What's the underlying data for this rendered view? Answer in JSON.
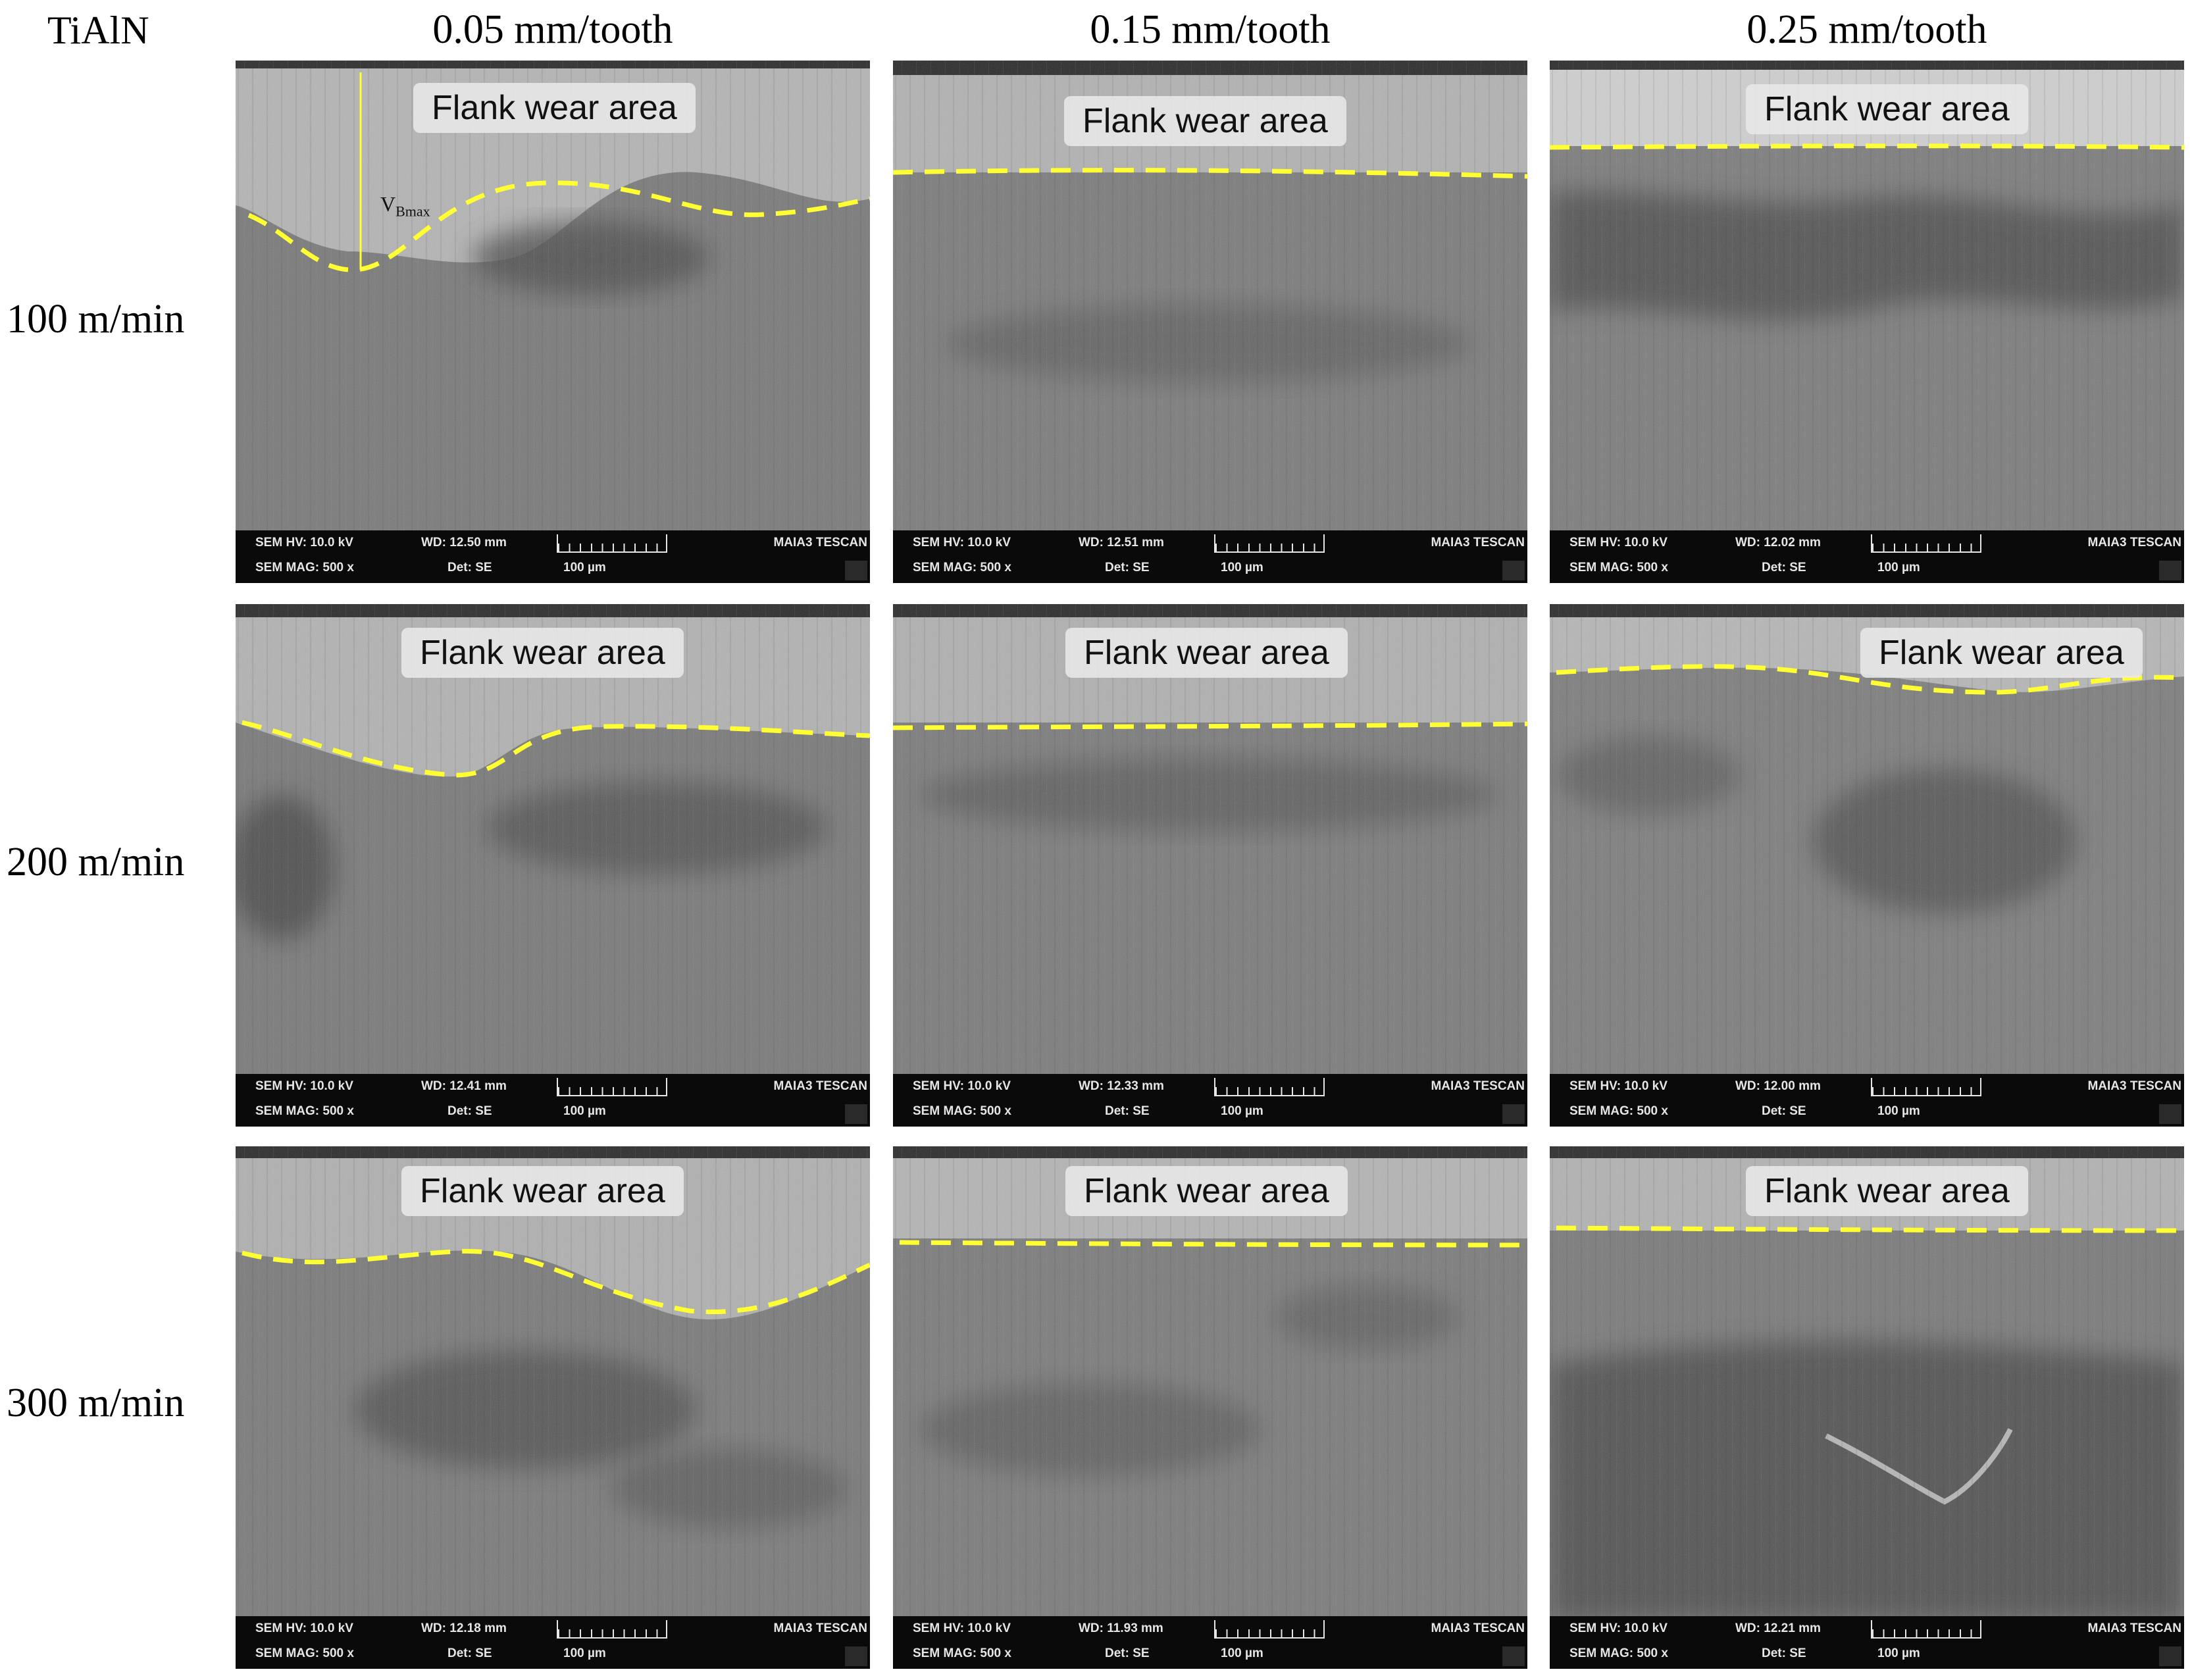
{
  "figure": {
    "corner_label": "TiAlN",
    "column_headers": [
      "0.05 mm/tooth",
      "0.15 mm/tooth",
      "0.25 mm/tooth"
    ],
    "row_labels": [
      "100 m/min",
      "200 m/min",
      "300 m/min"
    ],
    "flank_wear_label": "Flank wear area",
    "vb_label_main": "V",
    "vb_label_sub": "Bmax",
    "boundary_color": "#ffff33"
  },
  "panels": [
    {
      "hv": "SEM HV: 10.0 kV",
      "wd": "WD: 12.50 mm",
      "mag": "SEM MAG: 500 x",
      "det": "Det: SE",
      "scale": "100 µm",
      "brand": "MAIA3 TESCAN"
    },
    {
      "hv": "SEM HV: 10.0 kV",
      "wd": "WD: 12.51 mm",
      "mag": "SEM MAG: 500 x",
      "det": "Det: SE",
      "scale": "100 µm",
      "brand": "MAIA3 TESCAN"
    },
    {
      "hv": "SEM HV: 10.0 kV",
      "wd": "WD: 12.02 mm",
      "mag": "SEM MAG: 500 x",
      "det": "Det: SE",
      "scale": "100 µm",
      "brand": "MAIA3 TESCAN"
    },
    {
      "hv": "SEM HV: 10.0 kV",
      "wd": "WD: 12.41 mm",
      "mag": "SEM MAG: 500 x",
      "det": "Det: SE",
      "scale": "100 µm",
      "brand": "MAIA3 TESCAN"
    },
    {
      "hv": "SEM HV: 10.0 kV",
      "wd": "WD: 12.33 mm",
      "mag": "SEM MAG: 500 x",
      "det": "Det: SE",
      "scale": "100 µm",
      "brand": "MAIA3 TESCAN"
    },
    {
      "hv": "SEM HV: 10.0 kV",
      "wd": "WD: 12.00 mm",
      "mag": "SEM MAG: 500 x",
      "det": "Det: SE",
      "scale": "100 µm",
      "brand": "MAIA3 TESCAN"
    },
    {
      "hv": "SEM HV: 10.0 kV",
      "wd": "WD: 12.18 mm",
      "mag": "SEM MAG: 500 x",
      "det": "Det: SE",
      "scale": "100 µm",
      "brand": "MAIA3 TESCAN"
    },
    {
      "hv": "SEM HV: 10.0 kV",
      "wd": "WD: 11.93 mm",
      "mag": "SEM MAG: 500 x",
      "det": "Det: SE",
      "scale": "100 µm",
      "brand": "MAIA3 TESCAN"
    },
    {
      "hv": "SEM HV: 10.0 kV",
      "wd": "WD: 12.21 mm",
      "mag": "SEM MAG: 500 x",
      "det": "Det: SE",
      "scale": "100 µm",
      "brand": "MAIA3 TESCAN"
    }
  ]
}
